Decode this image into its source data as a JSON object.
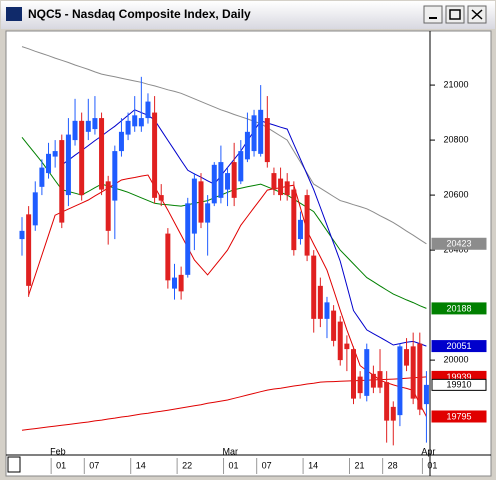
{
  "chart_data": {
    "type": "candlestick",
    "title": "NQC5 - Nasdaq Composite Index, Daily",
    "categories": [
      null,
      null,
      null,
      null,
      null,
      "01",
      null,
      null,
      null,
      null,
      "07",
      null,
      null,
      null,
      null,
      null,
      null,
      "14",
      null,
      null,
      null,
      null,
      null,
      null,
      "22",
      null,
      null,
      null,
      null,
      null,
      null,
      "01",
      null,
      null,
      null,
      null,
      "07",
      null,
      null,
      null,
      null,
      null,
      null,
      "14",
      null,
      null,
      null,
      null,
      null,
      null,
      "21",
      null,
      null,
      null,
      null,
      "28",
      null,
      null,
      null,
      null,
      null,
      "01"
    ],
    "months": [
      null,
      null,
      null,
      null,
      null,
      "Feb",
      null,
      null,
      null,
      null,
      null,
      null,
      null,
      null,
      null,
      null,
      null,
      null,
      null,
      null,
      null,
      null,
      null,
      null,
      null,
      null,
      null,
      null,
      null,
      null,
      null,
      "Mar",
      null,
      null,
      null,
      null,
      null,
      null,
      null,
      null,
      null,
      null,
      null,
      null,
      null,
      null,
      null,
      null,
      null,
      null,
      null,
      null,
      null,
      null,
      null,
      null,
      null,
      null,
      null,
      null,
      null,
      "Apr"
    ],
    "open": [
      20440,
      20530,
      20490,
      20630,
      20680,
      20740,
      20800,
      20600,
      20800,
      20870,
      20830,
      20840,
      20880,
      20650,
      20580,
      20760,
      20820,
      20850,
      20850,
      20880,
      20900,
      20600,
      20460,
      20260,
      20310,
      20310,
      20460,
      20650,
      20500,
      20570,
      20590,
      20620,
      20720,
      20650,
      20730,
      20760,
      20750,
      20880,
      20680,
      20660,
      20650,
      20620,
      20440,
      20600,
      20380,
      20270,
      20150,
      20180,
      20140,
      20060,
      20040,
      19940,
      19870,
      19950,
      19960,
      19920,
      19830,
      19800,
      20040,
      20050,
      20060,
      19840
    ],
    "high": [
      20520,
      20560,
      20650,
      20730,
      20790,
      20800,
      20820,
      20880,
      20950,
      20900,
      20950,
      20960,
      20900,
      20670,
      20780,
      20880,
      20900,
      20960,
      21030,
      20970,
      20960,
      20640,
      20480,
      20350,
      20340,
      20590,
      20680,
      20680,
      20600,
      20720,
      20780,
      20700,
      20790,
      20800,
      20900,
      20910,
      21000,
      20960,
      20700,
      20700,
      20680,
      20650,
      20540,
      20620,
      20400,
      20300,
      20230,
      20200,
      20160,
      20090,
      20050,
      19960,
      20060,
      19980,
      20040,
      19960,
      19850,
      20060,
      20080,
      20100,
      20100,
      19960
    ],
    "low": [
      20380,
      20230,
      20470,
      20600,
      20660,
      20700,
      20480,
      20560,
      20780,
      20580,
      20800,
      20820,
      20600,
      20420,
      20440,
      20740,
      20800,
      20830,
      20830,
      20860,
      20570,
      20560,
      20260,
      20220,
      20220,
      20300,
      20400,
      20480,
      20380,
      20560,
      20570,
      20560,
      20560,
      20640,
      20720,
      20740,
      20740,
      20700,
      20600,
      20580,
      20580,
      20380,
      20420,
      20360,
      20100,
      20120,
      20080,
      20050,
      19980,
      19960,
      19840,
      19860,
      19850,
      19880,
      19880,
      19700,
      19690,
      19760,
      19960,
      19840,
      19800,
      19700
    ],
    "close": [
      20470,
      20270,
      20610,
      20700,
      20750,
      20760,
      20500,
      20820,
      20870,
      20600,
      20870,
      20880,
      20620,
      20470,
      20760,
      20830,
      20870,
      20890,
      20880,
      20940,
      20590,
      20580,
      20290,
      20300,
      20250,
      20570,
      20660,
      20500,
      20570,
      20710,
      20720,
      20680,
      20590,
      20760,
      20830,
      20890,
      20910,
      20720,
      20620,
      20600,
      20600,
      20400,
      20510,
      20380,
      20150,
      20150,
      20210,
      20070,
      20000,
      20040,
      19860,
      19880,
      20040,
      19900,
      19900,
      19780,
      19780,
      20050,
      19980,
      19860,
      19820,
      19910
    ],
    "up_color": "#1f5cff",
    "down_color": "#e02020",
    "series": [
      {
        "color": "#8c8c8c",
        "values": [
          21140,
          21132,
          21123,
          21115,
          21107,
          21098,
          21090,
          21082,
          21073,
          21065,
          21057,
          21048,
          21040,
          21035,
          21030,
          21025,
          21020,
          21015,
          21010,
          21003,
          20997,
          20990,
          20983,
          20977,
          20970,
          20960,
          20950,
          20940,
          20930,
          20920,
          20910,
          20902,
          20893,
          20885,
          20877,
          20868,
          20860,
          20845,
          20830,
          20815,
          20800,
          20760,
          20720,
          20680,
          20640,
          20625,
          20610,
          20595,
          20580,
          20573,
          20565,
          20558,
          20550,
          20538,
          20525,
          20513,
          20500,
          20485,
          20469,
          20454,
          20438,
          20423
        ]
      },
      {
        "color": "#008000",
        "values": [
          20810,
          20780,
          20750,
          20720,
          20687,
          20653,
          20620,
          20613,
          20607,
          20600,
          20613,
          20627,
          20640,
          20633,
          20625,
          20618,
          20610,
          20600,
          20590,
          20580,
          20570,
          20567,
          20565,
          20562,
          20560,
          20565,
          20570,
          20575,
          20580,
          20590,
          20600,
          20610,
          20620,
          20625,
          20630,
          20635,
          20640,
          20630,
          20620,
          20610,
          20600,
          20585,
          20570,
          20555,
          20540,
          20505,
          20470,
          20435,
          20400,
          20375,
          20350,
          20325,
          20300,
          20285,
          20270,
          20255,
          20240,
          20230,
          20219,
          20209,
          20198,
          20188
        ]
      },
      {
        "color": "#0000cc",
        "values": [
          null,
          null,
          null,
          null,
          null,
          null,
          20710,
          20727,
          20745,
          20762,
          20780,
          20798,
          20815,
          20833,
          20850,
          20870,
          20890,
          20910,
          20900,
          20890,
          20873,
          20836,
          20799,
          20763,
          20726,
          20690,
          20677,
          20665,
          20652,
          20640,
          20670,
          20700,
          20730,
          20760,
          20797,
          20833,
          20870,
          20862,
          20855,
          20847,
          20840,
          20785,
          20730,
          20675,
          20620,
          20555,
          20490,
          20425,
          20360,
          20270,
          20180,
          20145,
          20110,
          20096,
          20083,
          20069,
          20055,
          20060,
          20065,
          20068,
          20060,
          20051
        ]
      },
      {
        "color": "#e00000",
        "values": [
          19745,
          19748,
          19751,
          19754,
          19757,
          19760,
          19763,
          19766,
          19769,
          19772,
          19775,
          19779,
          19782,
          19786,
          19789,
          19793,
          19796,
          19800,
          19804,
          19807,
          19811,
          19814,
          19818,
          19822,
          19826,
          19830,
          19834,
          19838,
          19843,
          19847,
          19851,
          19855,
          19861,
          19867,
          19873,
          19879,
          19885,
          19891,
          19895,
          19898,
          19902,
          19906,
          19909,
          19913,
          19916,
          19920,
          19921,
          19922,
          19923,
          19924,
          19925,
          19926,
          19927,
          19928,
          19929,
          19930,
          19931,
          19932,
          19934,
          19936,
          19937,
          19939
        ]
      },
      {
        "color": "#e00000",
        "values": [
          null,
          20236,
          20309,
          20382,
          20454,
          20527,
          20538,
          20549,
          20560,
          20571,
          20582,
          20597,
          20611,
          20626,
          20640,
          20655,
          20660,
          20664,
          20669,
          20673,
          20630,
          20588,
          20545,
          20500,
          20455,
          20409,
          20364,
          20337,
          20310,
          20340,
          20370,
          20400,
          20445,
          20490,
          20522,
          20554,
          20586,
          20618,
          20623,
          20627,
          20632,
          20636,
          20553,
          20470,
          20422,
          20375,
          20327,
          20255,
          20182,
          20110,
          20045,
          19980,
          19962,
          19945,
          19927,
          19918,
          19910,
          19903,
          19897,
          19890,
          19840,
          19795
        ]
      }
    ],
    "ylim": [
      19655,
      21193
    ],
    "yticks": [
      20000,
      20400,
      20600,
      20800,
      21000
    ]
  }
}
